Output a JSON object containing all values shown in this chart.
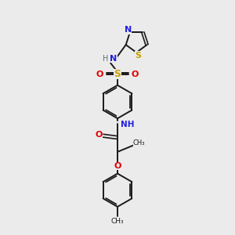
{
  "background_color": "#ebebeb",
  "bond_color": "#1a1a1a",
  "figsize": [
    3.0,
    3.0
  ],
  "dpi": 100,
  "atom_colors": {
    "N": "#2020e0",
    "O": "#e00000",
    "S_sulfonyl": "#c8a000",
    "S_thiazole": "#c8a000",
    "H_color": "#607070",
    "C": "#1a1a1a"
  },
  "layout": {
    "xlim": [
      0,
      10
    ],
    "ylim": [
      0,
      10
    ]
  }
}
